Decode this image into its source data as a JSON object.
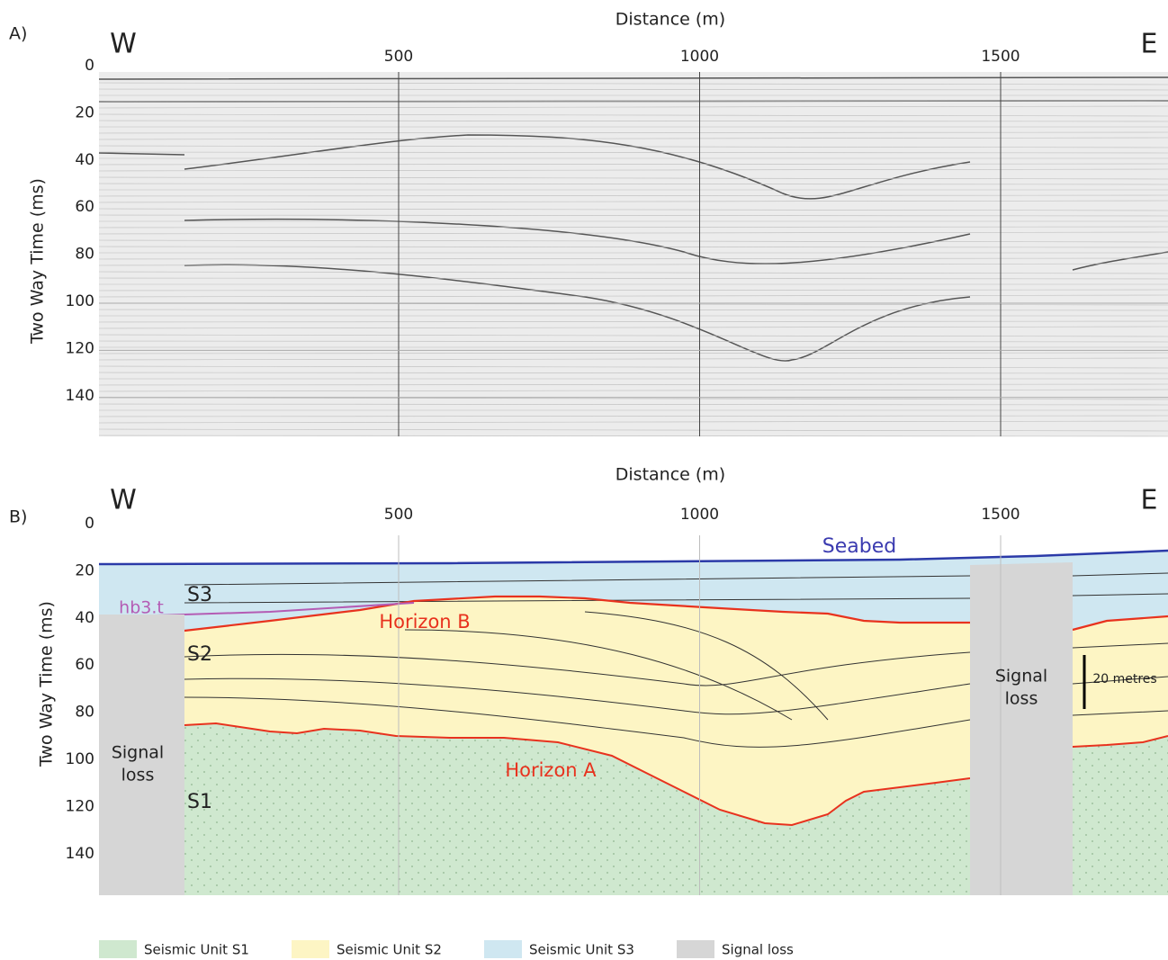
{
  "panels": [
    {
      "label": "A)",
      "x_label": "Distance (m)",
      "y_label": "Two Way Time (ms)",
      "west": "W",
      "east": "E",
      "xticks": [
        500,
        1000,
        1500
      ],
      "yticks": [
        0,
        20,
        40,
        60,
        80,
        100,
        120,
        140
      ]
    },
    {
      "label": "B)",
      "x_label": "Distance (m)",
      "y_label": "Two Way Time (ms)",
      "west": "W",
      "east": "E",
      "xticks": [
        500,
        1000,
        1500
      ],
      "yticks": [
        0,
        20,
        40,
        60,
        80,
        100,
        120,
        140
      ],
      "annotations": {
        "seabed": "Seabed",
        "hb3t": "hb3.t",
        "s3": "S3",
        "s2": "S2",
        "s1": "S1",
        "horizon_b": "Horizon B",
        "horizon_a": "Horizon A",
        "signal_loss_left": [
          "Signal",
          "loss"
        ],
        "signal_loss_right": [
          "Signal",
          "loss"
        ],
        "scale": "20 metres"
      }
    }
  ],
  "legend": [
    "Seismic Unit S1",
    "Seismic Unit S2",
    "Seismic Unit S3",
    "Signal loss"
  ]
}
